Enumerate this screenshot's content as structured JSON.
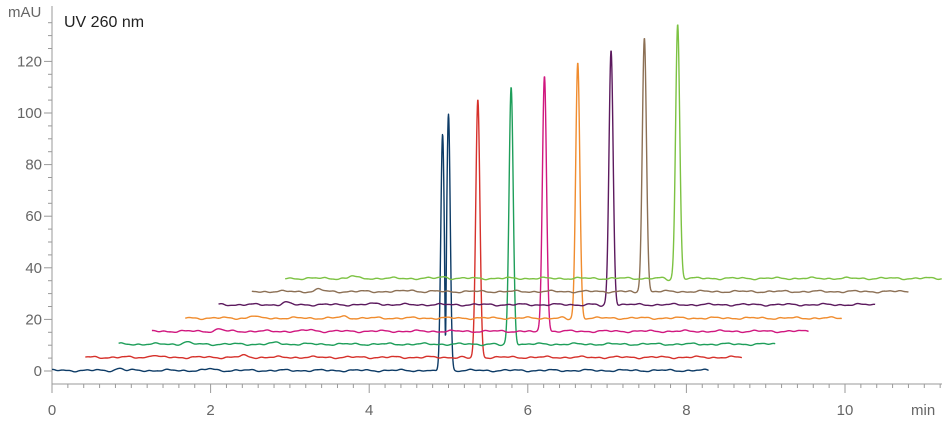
{
  "chart_data": {
    "type": "line",
    "title": "UV 260 nm",
    "xlabel": "min",
    "ylabel": "mAU",
    "xlim": [
      0,
      11.2
    ],
    "ylim": [
      -5,
      142
    ],
    "x_ticks": [
      0,
      2,
      4,
      6,
      8,
      10
    ],
    "y_ticks": [
      0,
      20,
      40,
      60,
      80,
      100,
      120
    ],
    "grid": false,
    "legend": "none",
    "offset_per_trace": {
      "x": 0.42,
      "y": 5.2
    },
    "series": [
      {
        "color": "#0d3b66",
        "x_start": 0.0,
        "x_end": 8.28,
        "baseline": 0.2,
        "peak_time": 4.97,
        "peak_height": 99.5,
        "shoulder_height": 91.5
      },
      {
        "color": "#d6312b",
        "x_start": 0.42,
        "x_end": 8.7,
        "baseline": 5.3,
        "peak_time": 5.37,
        "peak_height": 105
      },
      {
        "color": "#1e9e5a",
        "x_start": 0.84,
        "x_end": 9.12,
        "baseline": 10.4,
        "peak_time": 5.79,
        "peak_height": 110
      },
      {
        "color": "#d0177f",
        "x_start": 1.26,
        "x_end": 9.54,
        "baseline": 15.4,
        "peak_time": 6.21,
        "peak_height": 114.5
      },
      {
        "color": "#f08c2e",
        "x_start": 1.68,
        "x_end": 9.96,
        "baseline": 20.5,
        "peak_time": 6.63,
        "peak_height": 119.5
      },
      {
        "color": "#5c1a5e",
        "x_start": 2.1,
        "x_end": 10.38,
        "baseline": 25.7,
        "peak_time": 7.05,
        "peak_height": 124.5
      },
      {
        "color": "#8c7055",
        "x_start": 2.52,
        "x_end": 10.8,
        "baseline": 30.8,
        "peak_time": 7.47,
        "peak_height": 129.5
      },
      {
        "color": "#7cc242",
        "x_start": 2.94,
        "x_end": 11.22,
        "baseline": 35.9,
        "peak_time": 7.89,
        "peak_height": 134.5
      }
    ]
  }
}
